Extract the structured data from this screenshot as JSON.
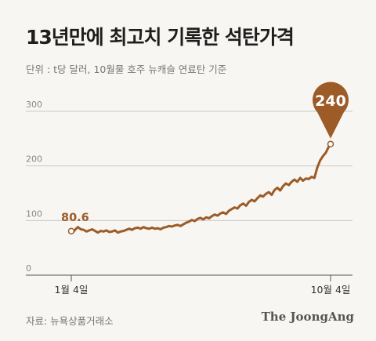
{
  "header": {
    "title": "13년만에 최고치 기록한 석탄가격",
    "unit": "단위 : t당 달러, 10월물 호주 뉴캐슬 연료탄 기준"
  },
  "footer": {
    "source": "자료: 뉴욕상품거래소",
    "brand": "The JoongAng"
  },
  "colors": {
    "line": "#9c5b27",
    "grid": "#c9c9c9",
    "axis": "#555555"
  },
  "chart_data": {
    "type": "line",
    "title": "13년만에 최고치 기록한 석탄가격",
    "ylabel": "",
    "xlabel": "",
    "ylim": [
      0,
      320
    ],
    "yticks": [
      0,
      100,
      200,
      300
    ],
    "xtick_labels": [
      "1월 4일",
      "10월 4일"
    ],
    "x_range": [
      0,
      273
    ],
    "grid": true,
    "series": [
      {
        "x": [
          0,
          2,
          5,
          7,
          10,
          13,
          16,
          19,
          22,
          25,
          28,
          31,
          34,
          37,
          40,
          43,
          46,
          49,
          52,
          55,
          58,
          61,
          64,
          67,
          70,
          73,
          76,
          79,
          82,
          85,
          88,
          91,
          94,
          97,
          100,
          103,
          106,
          109,
          112,
          115,
          118,
          121,
          124,
          127,
          130,
          133,
          136,
          139,
          142,
          145,
          148,
          151,
          154,
          157,
          160,
          163,
          166,
          169,
          172,
          175,
          178,
          181,
          184,
          187,
          190,
          193,
          196,
          199,
          202,
          205,
          208,
          211,
          214,
          217,
          220,
          223,
          226,
          229,
          232,
          235,
          238,
          241,
          244,
          247,
          250,
          253,
          256,
          259,
          262,
          265,
          268,
          271,
          273
        ],
        "values": [
          80.6,
          79,
          85,
          88,
          84,
          83,
          80,
          82,
          84,
          81,
          78,
          81,
          80,
          82,
          79,
          80,
          82,
          78,
          80,
          81,
          83,
          85,
          83,
          86,
          87,
          85,
          88,
          86,
          85,
          87,
          85,
          86,
          84,
          87,
          88,
          90,
          89,
          91,
          92,
          90,
          93,
          96,
          98,
          101,
          99,
          103,
          105,
          102,
          106,
          104,
          108,
          111,
          109,
          113,
          115,
          112,
          118,
          121,
          124,
          122,
          128,
          131,
          127,
          134,
          138,
          135,
          141,
          146,
          144,
          149,
          152,
          147,
          156,
          160,
          155,
          163,
          168,
          165,
          171,
          175,
          171,
          178,
          173,
          177,
          176,
          180,
          178,
          197,
          210,
          218,
          224,
          235,
          240
        ]
      }
    ],
    "annotations": [
      {
        "label": "80.6",
        "x": 0,
        "y": 80.6
      },
      {
        "label": "240",
        "x": 273,
        "y": 240
      }
    ]
  }
}
